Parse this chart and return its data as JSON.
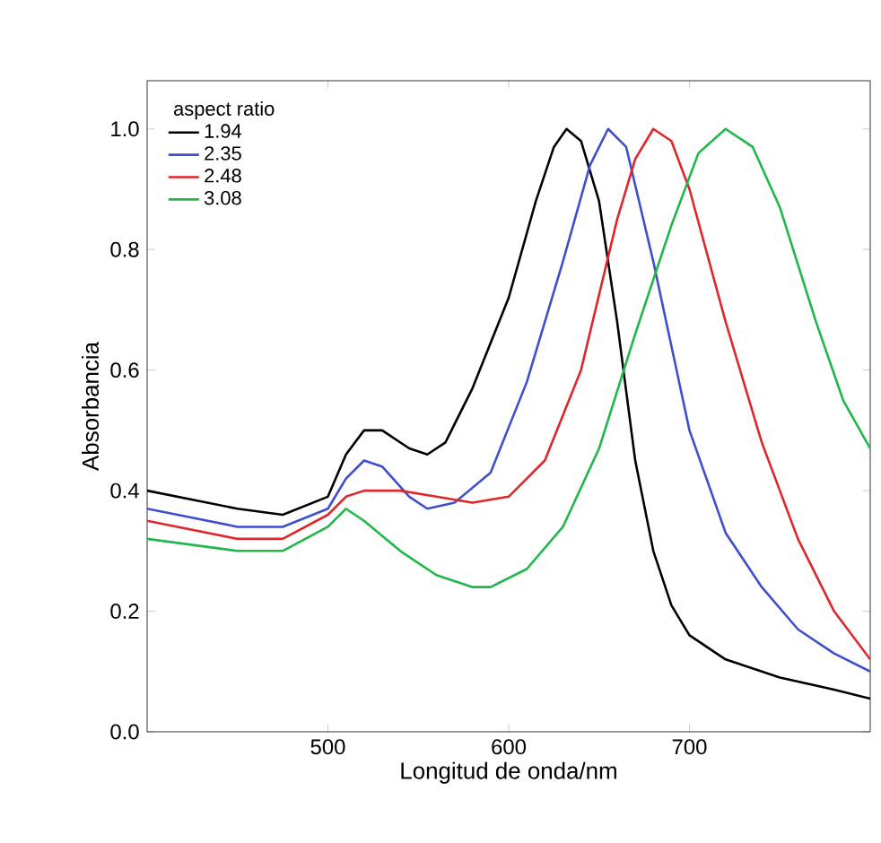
{
  "chart_data": {
    "type": "line",
    "xlabel": "Longitud de onda/nm",
    "ylabel": "Absorbancia",
    "legend_title": "aspect ratio",
    "legend": "top left",
    "xlim": [
      400,
      800
    ],
    "ylim": [
      0,
      1.08
    ],
    "xticks": [
      500,
      600,
      700
    ],
    "yticks": [
      {
        "value": 0,
        "label": "0.0"
      },
      {
        "value": 0.2,
        "label": "0.2"
      },
      {
        "value": 0.4,
        "label": "0.4"
      },
      {
        "value": 0.6,
        "label": "0.6"
      },
      {
        "value": 0.8,
        "label": "0.8"
      },
      {
        "value": 1,
        "label": "1.0"
      }
    ],
    "series": [
      {
        "name": "1.94",
        "color": "#000000",
        "x": [
          400,
          450,
          475,
          500,
          510,
          520,
          530,
          545,
          555,
          565,
          580,
          600,
          615,
          625,
          632,
          640,
          650,
          660,
          670,
          680,
          690,
          700,
          720,
          750,
          780,
          800
        ],
        "values": [
          0.4,
          0.37,
          0.36,
          0.39,
          0.46,
          0.5,
          0.5,
          0.47,
          0.46,
          0.48,
          0.57,
          0.72,
          0.88,
          0.97,
          1.0,
          0.98,
          0.88,
          0.68,
          0.45,
          0.3,
          0.21,
          0.16,
          0.12,
          0.09,
          0.07,
          0.055
        ]
      },
      {
        "name": "2.35",
        "color": "#3d4fd0",
        "x": [
          400,
          450,
          475,
          500,
          510,
          520,
          530,
          545,
          555,
          570,
          590,
          610,
          630,
          645,
          655,
          665,
          680,
          700,
          720,
          740,
          760,
          780,
          800
        ],
        "values": [
          0.37,
          0.34,
          0.34,
          0.37,
          0.42,
          0.45,
          0.44,
          0.39,
          0.37,
          0.38,
          0.43,
          0.58,
          0.78,
          0.94,
          1.0,
          0.97,
          0.78,
          0.5,
          0.33,
          0.24,
          0.17,
          0.13,
          0.1
        ]
      },
      {
        "name": "2.48",
        "color": "#e0262a",
        "x": [
          400,
          450,
          475,
          500,
          510,
          520,
          540,
          560,
          580,
          600,
          620,
          640,
          660,
          670,
          680,
          690,
          700,
          720,
          740,
          760,
          780,
          800
        ],
        "values": [
          0.35,
          0.32,
          0.32,
          0.36,
          0.39,
          0.4,
          0.4,
          0.39,
          0.38,
          0.39,
          0.45,
          0.6,
          0.85,
          0.95,
          1.0,
          0.98,
          0.9,
          0.68,
          0.48,
          0.32,
          0.2,
          0.12
        ]
      },
      {
        "name": "3.08",
        "color": "#1fb84a",
        "x": [
          400,
          450,
          475,
          500,
          510,
          520,
          540,
          560,
          580,
          590,
          610,
          630,
          650,
          670,
          690,
          705,
          720,
          735,
          750,
          770,
          785,
          800
        ],
        "values": [
          0.32,
          0.3,
          0.3,
          0.34,
          0.37,
          0.35,
          0.3,
          0.26,
          0.24,
          0.24,
          0.27,
          0.34,
          0.47,
          0.66,
          0.84,
          0.96,
          1.0,
          0.97,
          0.87,
          0.68,
          0.55,
          0.47
        ]
      }
    ]
  }
}
